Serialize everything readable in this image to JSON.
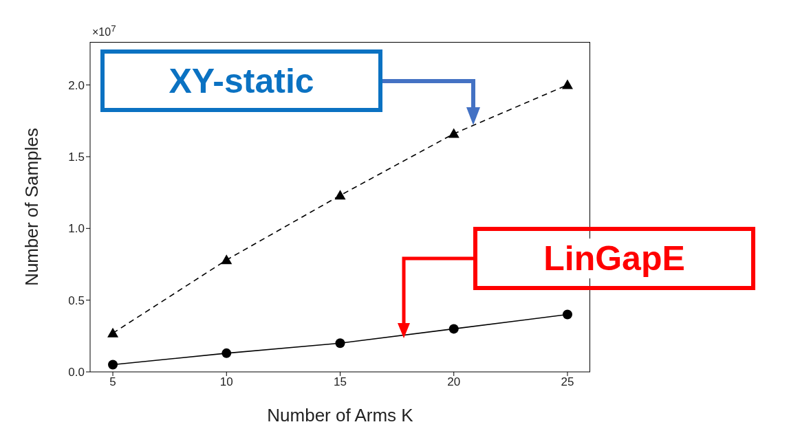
{
  "chart_data": {
    "type": "line",
    "xlabel": "Number of Arms K",
    "ylabel": "Number of Samples",
    "x": [
      5,
      10,
      15,
      20,
      25
    ],
    "series": [
      {
        "name": "XY-static",
        "color": "#000000",
        "marker": "triangle",
        "line_style": "dashed",
        "values": [
          0.27,
          0.78,
          1.23,
          1.66,
          2.0
        ]
      },
      {
        "name": "LinGapE",
        "color": "#000000",
        "marker": "circle",
        "line_style": "solid",
        "values": [
          0.05,
          0.13,
          0.2,
          0.3,
          0.4
        ]
      }
    ],
    "xlim": [
      4,
      26
    ],
    "xticks": [
      5,
      10,
      15,
      20,
      25
    ],
    "ylim": [
      0,
      2.3
    ],
    "yticks": [
      {
        "value": 0,
        "label": "0.0"
      },
      {
        "value": 0.5,
        "label": "0.5"
      },
      {
        "value": 1,
        "label": "1.0"
      },
      {
        "value": 1.5,
        "label": "1.5"
      },
      {
        "value": 2,
        "label": "2.0"
      }
    ],
    "annotations": [
      "×10$^{7}$"
    ],
    "grid": false,
    "legend": false
  }
}
